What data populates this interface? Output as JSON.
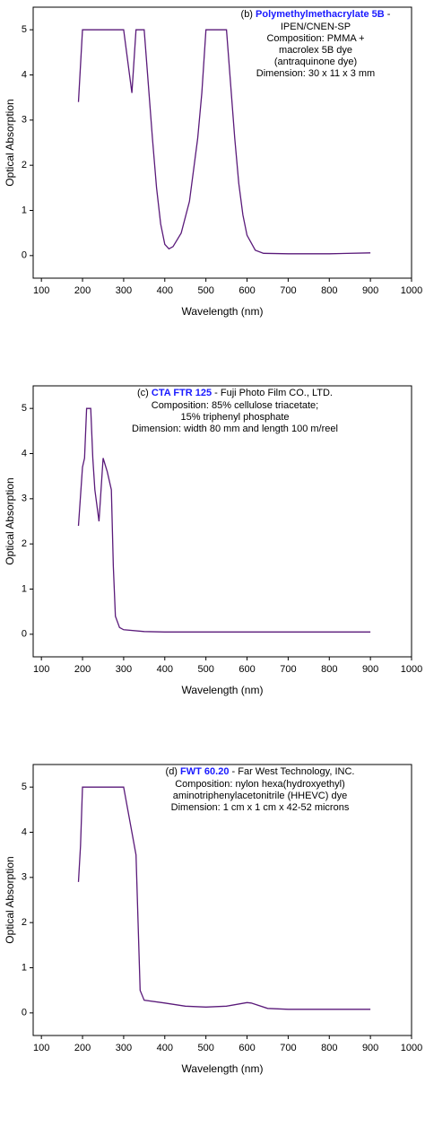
{
  "chart_data": [
    {
      "type": "line",
      "x_label": "Wavelength (nm)",
      "y_label": "Optical Absorption",
      "annotation": {
        "label": "(b)",
        "name": "Polymethylmethacrylate 5B",
        "suffix": "-",
        "lines": [
          "IPEN/CNEN-SP",
          "Composition: PMMA +",
          "macrolex 5B dye",
          "(antraquinone dye)",
          "Dimension: 30 x 11 x 3 mm"
        ]
      },
      "xlim": [
        80,
        1000
      ],
      "ylim": [
        -0.5,
        5.5
      ],
      "xticks": [
        100,
        200,
        300,
        400,
        500,
        600,
        700,
        800,
        900,
        1000
      ],
      "yticks": [
        0,
        1,
        2,
        3,
        4,
        5
      ],
      "series": [
        {
          "color": "#5a1a7a",
          "x": [
            190,
            200,
            250,
            300,
            320,
            330,
            350,
            360,
            370,
            380,
            390,
            400,
            410,
            420,
            440,
            460,
            480,
            490,
            500,
            510,
            550,
            560,
            570,
            580,
            590,
            600,
            620,
            640,
            700,
            800,
            900
          ],
          "values": [
            3.4,
            5,
            5,
            5,
            3.6,
            5,
            5,
            3.8,
            2.6,
            1.5,
            0.7,
            0.25,
            0.15,
            0.2,
            0.5,
            1.2,
            2.6,
            3.6,
            5,
            5,
            5,
            3.8,
            2.6,
            1.6,
            0.9,
            0.45,
            0.12,
            0.05,
            0.04,
            0.04,
            0.06
          ]
        }
      ]
    },
    {
      "type": "line",
      "x_label": "Wavelength (nm)",
      "y_label": "Optical Absorption",
      "annotation": {
        "label": "(c)",
        "name": "CTA FTR 125",
        "suffix": "- Fuji Photo Film CO., LTD.",
        "lines": [
          "Composition: 85% cellulose triacetate;",
          "15% triphenyl phosphate",
          "Dimension: width 80 mm and length 100 m/reel"
        ]
      },
      "xlim": [
        80,
        1000
      ],
      "ylim": [
        -0.5,
        5.5
      ],
      "xticks": [
        100,
        200,
        300,
        400,
        500,
        600,
        700,
        800,
        900,
        1000
      ],
      "yticks": [
        0,
        1,
        2,
        3,
        4,
        5
      ],
      "series": [
        {
          "color": "#5a1a7a",
          "x": [
            190,
            200,
            205,
            210,
            220,
            225,
            230,
            240,
            250,
            260,
            270,
            275,
            280,
            290,
            300,
            350,
            400,
            500,
            900
          ],
          "values": [
            2.4,
            3.7,
            3.9,
            5,
            5,
            3.9,
            3.2,
            2.5,
            3.9,
            3.6,
            3.2,
            1.5,
            0.4,
            0.15,
            0.1,
            0.06,
            0.05,
            0.05,
            0.05
          ]
        }
      ]
    },
    {
      "type": "line",
      "x_label": "Wavelength (nm)",
      "y_label": "Optical Absorption",
      "annotation": {
        "label": "(d)",
        "name": "FWT 60.20",
        "suffix": "- Far West Technology, INC.",
        "lines": [
          "Composition: nylon hexa(hydroxyethyl)",
          "aminotriphenylacetonitrile  (HHEVC) dye",
          "Dimension: 1 cm x 1 cm x 42-52 microns"
        ]
      },
      "xlim": [
        80,
        1000
      ],
      "ylim": [
        -0.5,
        5.5
      ],
      "xticks": [
        100,
        200,
        300,
        400,
        500,
        600,
        700,
        800,
        900,
        1000
      ],
      "yticks": [
        0,
        1,
        2,
        3,
        4,
        5
      ],
      "series": [
        {
          "color": "#5a1a7a",
          "x": [
            190,
            195,
            200,
            250,
            300,
            320,
            330,
            335,
            340,
            350,
            400,
            450,
            500,
            550,
            600,
            610,
            650,
            700,
            800,
            900
          ],
          "values": [
            2.9,
            3.7,
            5,
            5,
            5,
            4,
            3.5,
            2,
            0.5,
            0.28,
            0.22,
            0.15,
            0.13,
            0.15,
            0.23,
            0.22,
            0.1,
            0.08,
            0.08,
            0.08
          ]
        }
      ]
    }
  ]
}
